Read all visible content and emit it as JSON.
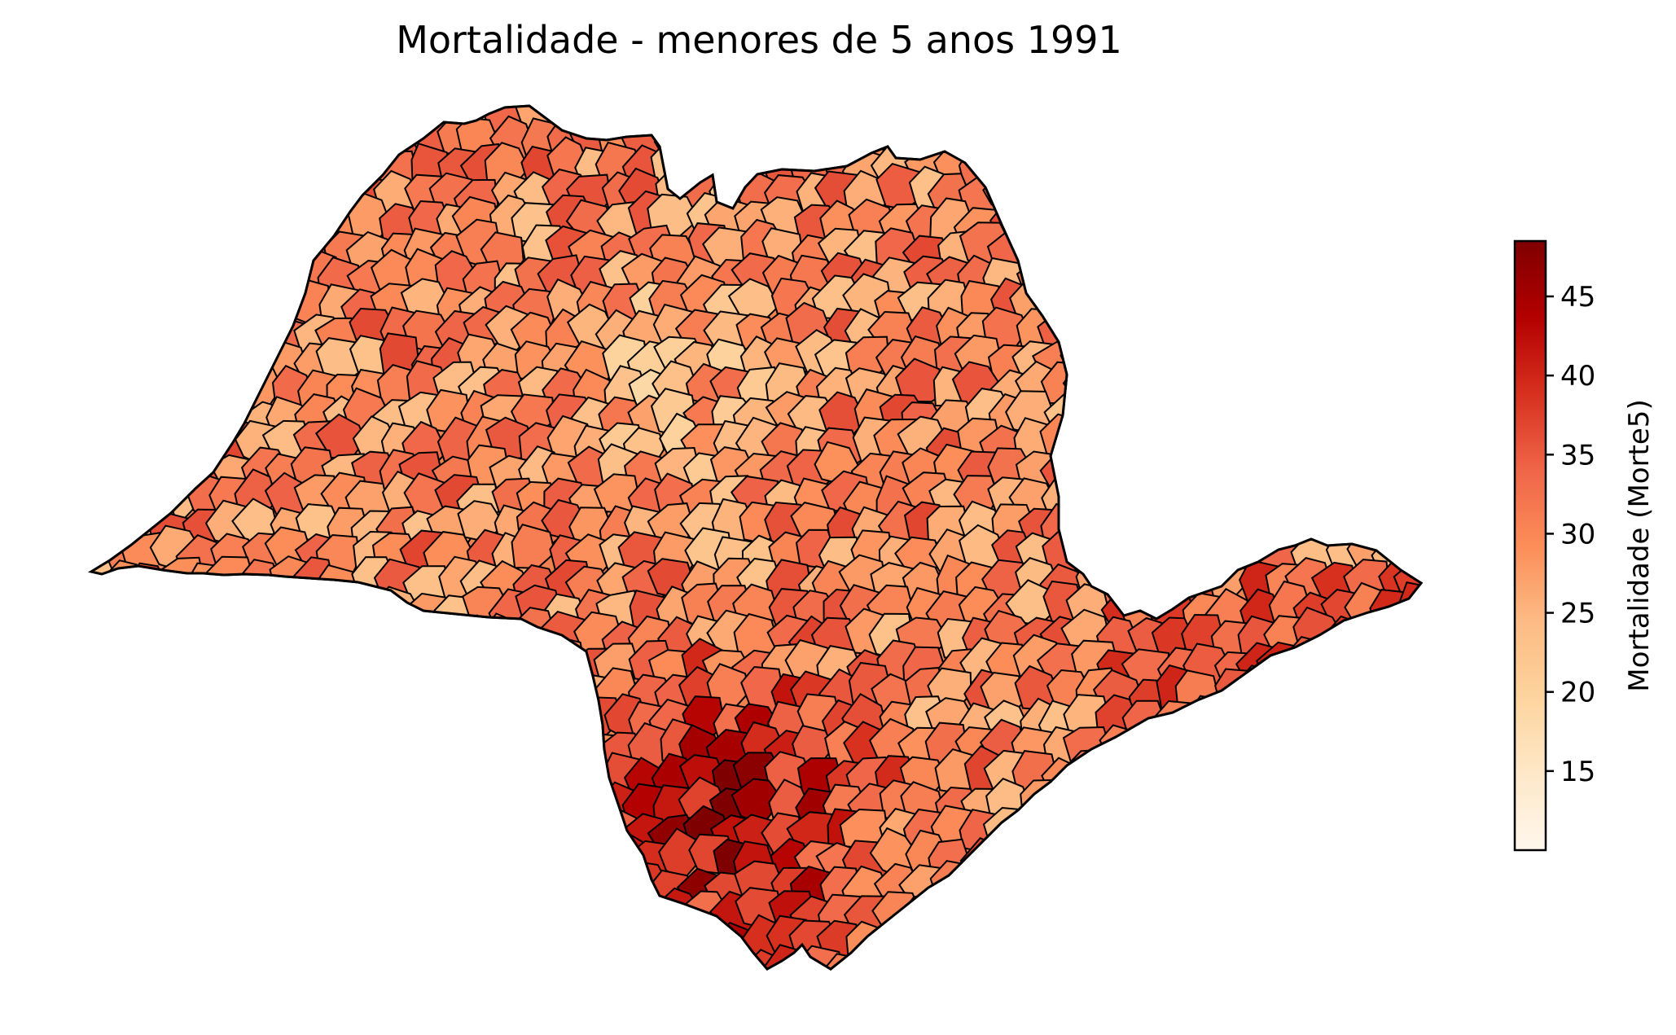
{
  "title": "Mortalidade - menores de 5 anos 1991",
  "colorbar": {
    "label": "Mortalidade (Morte5)",
    "min": 10,
    "max": 48.5,
    "ticks": [
      15,
      20,
      25,
      30,
      35,
      40,
      45
    ],
    "tick_labels": [
      "15",
      "20",
      "25",
      "30",
      "35",
      "40",
      "45"
    ],
    "colormap": "OrRd",
    "color_stops": [
      "#fff7ec",
      "#fee8c8",
      "#fdd49e",
      "#fdbb84",
      "#fc8d59",
      "#ef6548",
      "#d7301f",
      "#b30000",
      "#7f0000"
    ]
  },
  "map": {
    "region": "São Paulo state",
    "boundary_color": "#000000",
    "background": "#ffffff"
  }
}
